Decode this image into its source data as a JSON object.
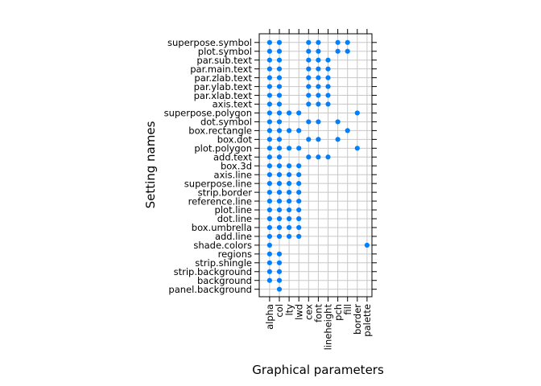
{
  "chart_data": {
    "type": "scatter",
    "xlabel": "Graphical parameters",
    "ylabel": "Setting names",
    "x_categories": [
      "alpha",
      "col",
      "lty",
      "lwd",
      "cex",
      "font",
      "lineheight",
      "pch",
      "fill",
      "border",
      "palette"
    ],
    "y_categories": [
      "superpose.symbol",
      "plot.symbol",
      "par.sub.text",
      "par.main.text",
      "par.zlab.text",
      "par.ylab.text",
      "par.xlab.text",
      "axis.text",
      "superpose.polygon",
      "dot.symbol",
      "box.rectangle",
      "box.dot",
      "plot.polygon",
      "add.text",
      "box.3d",
      "axis.line",
      "superpose.line",
      "strip.border",
      "reference.line",
      "plot.line",
      "dot.line",
      "box.umbrella",
      "add.line",
      "shade.colors",
      "regions",
      "strip.shingle",
      "strip.background",
      "background",
      "panel.background"
    ],
    "grid": true,
    "point_color": "#0080ff",
    "points": [
      {
        "y": "superpose.symbol",
        "x": [
          "alpha",
          "col",
          "cex",
          "font",
          "pch",
          "fill"
        ]
      },
      {
        "y": "plot.symbol",
        "x": [
          "alpha",
          "col",
          "cex",
          "font",
          "pch",
          "fill"
        ]
      },
      {
        "y": "par.sub.text",
        "x": [
          "alpha",
          "col",
          "cex",
          "font",
          "lineheight"
        ]
      },
      {
        "y": "par.main.text",
        "x": [
          "alpha",
          "col",
          "cex",
          "font",
          "lineheight"
        ]
      },
      {
        "y": "par.zlab.text",
        "x": [
          "alpha",
          "col",
          "cex",
          "font",
          "lineheight"
        ]
      },
      {
        "y": "par.ylab.text",
        "x": [
          "alpha",
          "col",
          "cex",
          "font",
          "lineheight"
        ]
      },
      {
        "y": "par.xlab.text",
        "x": [
          "alpha",
          "col",
          "cex",
          "font",
          "lineheight"
        ]
      },
      {
        "y": "axis.text",
        "x": [
          "alpha",
          "col",
          "cex",
          "font",
          "lineheight"
        ]
      },
      {
        "y": "superpose.polygon",
        "x": [
          "alpha",
          "col",
          "lty",
          "lwd",
          "border"
        ]
      },
      {
        "y": "dot.symbol",
        "x": [
          "alpha",
          "col",
          "cex",
          "font",
          "pch"
        ]
      },
      {
        "y": "box.rectangle",
        "x": [
          "alpha",
          "col",
          "lty",
          "lwd",
          "fill"
        ]
      },
      {
        "y": "box.dot",
        "x": [
          "alpha",
          "col",
          "cex",
          "font",
          "pch"
        ]
      },
      {
        "y": "plot.polygon",
        "x": [
          "alpha",
          "col",
          "lty",
          "lwd",
          "border"
        ]
      },
      {
        "y": "add.text",
        "x": [
          "alpha",
          "col",
          "cex",
          "font",
          "lineheight"
        ]
      },
      {
        "y": "box.3d",
        "x": [
          "alpha",
          "col",
          "lty",
          "lwd"
        ]
      },
      {
        "y": "axis.line",
        "x": [
          "alpha",
          "col",
          "lty",
          "lwd"
        ]
      },
      {
        "y": "superpose.line",
        "x": [
          "alpha",
          "col",
          "lty",
          "lwd"
        ]
      },
      {
        "y": "strip.border",
        "x": [
          "alpha",
          "col",
          "lty",
          "lwd"
        ]
      },
      {
        "y": "reference.line",
        "x": [
          "alpha",
          "col",
          "lty",
          "lwd"
        ]
      },
      {
        "y": "plot.line",
        "x": [
          "alpha",
          "col",
          "lty",
          "lwd"
        ]
      },
      {
        "y": "dot.line",
        "x": [
          "alpha",
          "col",
          "lty",
          "lwd"
        ]
      },
      {
        "y": "box.umbrella",
        "x": [
          "alpha",
          "col",
          "lty",
          "lwd"
        ]
      },
      {
        "y": "add.line",
        "x": [
          "alpha",
          "col",
          "lty",
          "lwd"
        ]
      },
      {
        "y": "shade.colors",
        "x": [
          "alpha",
          "palette"
        ]
      },
      {
        "y": "regions",
        "x": [
          "alpha",
          "col"
        ]
      },
      {
        "y": "strip.shingle",
        "x": [
          "alpha",
          "col"
        ]
      },
      {
        "y": "strip.background",
        "x": [
          "alpha",
          "col"
        ]
      },
      {
        "y": "background",
        "x": [
          "alpha",
          "col"
        ]
      },
      {
        "y": "panel.background",
        "x": [
          "col"
        ]
      }
    ]
  }
}
